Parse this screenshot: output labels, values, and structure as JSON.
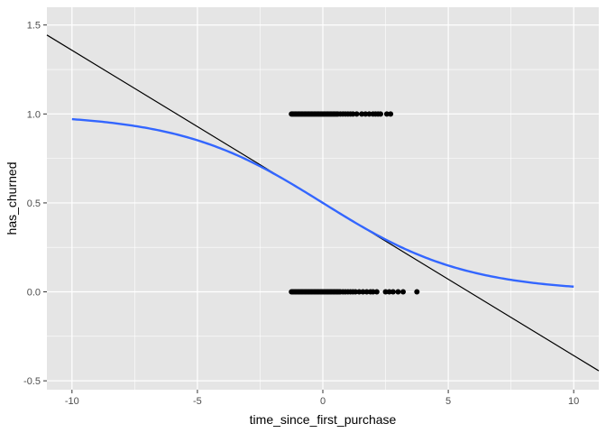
{
  "chart_data": {
    "type": "scatter",
    "xlabel": "time_since_first_purchase",
    "ylabel": "has_churned",
    "xlim": [
      -11,
      11
    ],
    "ylim": [
      -0.55,
      1.6
    ],
    "x_ticks": [
      -10,
      -5,
      0,
      5,
      10
    ],
    "x_tick_labels": [
      "-10",
      "-5",
      "0",
      "5",
      "10"
    ],
    "y_ticks": [
      -0.5,
      0.0,
      0.5,
      1.0,
      1.5
    ],
    "y_tick_labels": [
      "-0.5",
      "0.0",
      "0.5",
      "1.0",
      "1.5"
    ],
    "grid": true,
    "legend": "none",
    "colors": {
      "panel_background": "#e5e5e5",
      "grid": "#ffffff",
      "points": "#000000",
      "linear_fit": "#000000",
      "logistic_curve": "#3366ff"
    },
    "points": {
      "y1_x": [
        -1.25,
        -1.2,
        -1.15,
        -1.1,
        -1.05,
        -1.0,
        -0.95,
        -0.9,
        -0.85,
        -0.8,
        -0.75,
        -0.7,
        -0.65,
        -0.6,
        -0.55,
        -0.5,
        -0.45,
        -0.4,
        -0.35,
        -0.3,
        -0.25,
        -0.2,
        -0.15,
        -0.1,
        -0.05,
        0.0,
        0.05,
        0.1,
        0.15,
        0.2,
        0.25,
        0.3,
        0.35,
        0.4,
        0.45,
        0.5,
        0.55,
        0.6,
        0.7,
        0.8,
        0.9,
        1.0,
        1.1,
        1.2,
        1.35,
        1.55,
        1.7,
        1.85,
        2.0,
        2.1,
        2.2,
        2.3,
        2.55,
        2.7
      ],
      "y0_x": [
        -1.25,
        -1.2,
        -1.15,
        -1.1,
        -1.05,
        -1.0,
        -0.95,
        -0.9,
        -0.85,
        -0.8,
        -0.75,
        -0.7,
        -0.65,
        -0.6,
        -0.55,
        -0.5,
        -0.45,
        -0.4,
        -0.35,
        -0.3,
        -0.25,
        -0.2,
        -0.15,
        -0.1,
        -0.05,
        0.0,
        0.05,
        0.1,
        0.15,
        0.2,
        0.25,
        0.3,
        0.35,
        0.4,
        0.45,
        0.5,
        0.55,
        0.6,
        0.65,
        0.7,
        0.8,
        0.9,
        1.0,
        1.1,
        1.2,
        1.3,
        1.45,
        1.6,
        1.75,
        1.9,
        2.0,
        2.15,
        2.5,
        2.65,
        2.8,
        3.0,
        3.2,
        3.75
      ]
    },
    "linear_fit": {
      "intercept": 0.5,
      "slope": -0.0858
    },
    "logistic_curve": {
      "intercept": 0.0,
      "slope": -0.35,
      "x_range": [
        -10,
        10
      ]
    }
  }
}
